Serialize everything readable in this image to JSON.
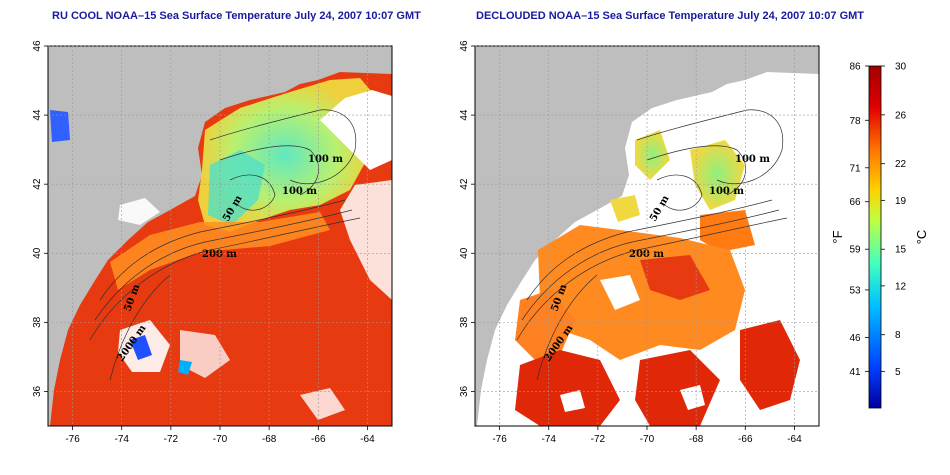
{
  "maps": [
    {
      "id": "left",
      "title": "RU COOL NOAA–15 Sea Surface Temperature July 24, 2007 10:07 GMT",
      "contour_labels": [
        "100 m",
        "100 m",
        "50 m",
        "200 m",
        "50 m",
        "2000 m"
      ]
    },
    {
      "id": "right",
      "title": "DECLOUDED NOAA–15 Sea Surface Temperature July 24, 2007 10:07 GMT",
      "contour_labels": [
        "100 m",
        "100 m",
        "50 m",
        "200 m",
        "50 m",
        "2000 m"
      ]
    }
  ],
  "axes": {
    "lon_ticks": [
      "-76",
      "-74",
      "-72",
      "-70",
      "-68",
      "-66",
      "-64"
    ],
    "lat_ticks": [
      "46",
      "44",
      "42",
      "40",
      "38",
      "36"
    ],
    "lon_range": [
      -77,
      -63
    ],
    "lat_range": [
      35,
      46
    ]
  },
  "colorbar": {
    "fahrenheit_unit": "°F",
    "celsius_unit": "°C",
    "fahrenheit_ticks": [
      "86",
      "78",
      "71",
      "66",
      "59",
      "53",
      "46",
      "41"
    ],
    "celsius_ticks": [
      "30",
      "26",
      "22",
      "19",
      "15",
      "12",
      "8",
      "5"
    ],
    "celsius_range": [
      2,
      30
    ],
    "colors": [
      "#0000a0",
      "#0040ff",
      "#00c0ff",
      "#40ffc0",
      "#c0ff40",
      "#ffd000",
      "#ff7000",
      "#e00000",
      "#a00000"
    ]
  },
  "colors": {
    "land": "#bebebe",
    "cloud": "#ffffff",
    "warm": "#e83a10",
    "title": "#1a1aa0"
  }
}
